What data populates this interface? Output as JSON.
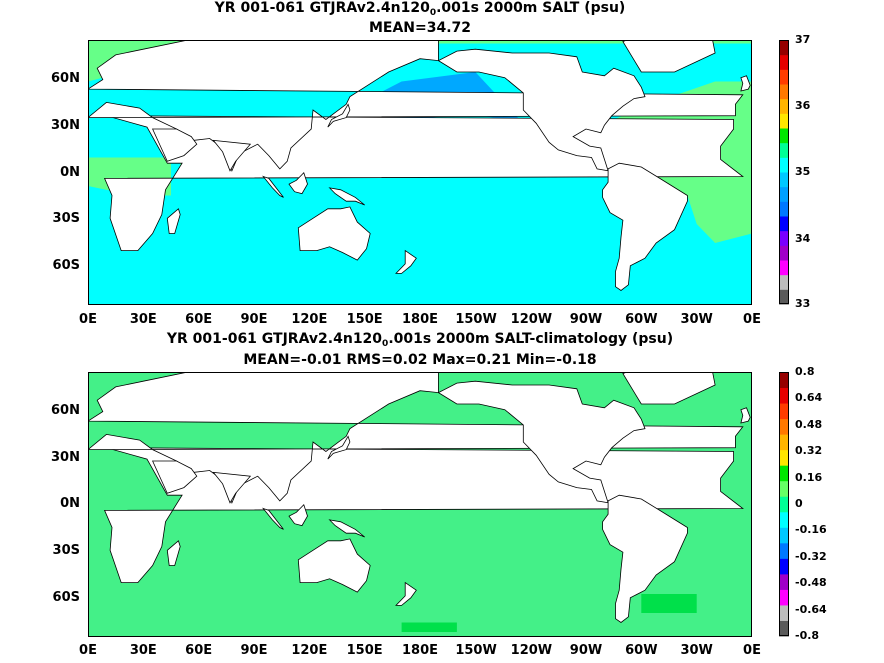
{
  "chart_data": [
    {
      "type": "heatmap",
      "title_parts": [
        "YR 001-061 GTJRAv2.4n120",
        "0",
        ".001s 2000m SALT (psu)"
      ],
      "subtitle": "MEAN=34.72",
      "x_ticks": [
        "0E",
        "30E",
        "60E",
        "90E",
        "120E",
        "150E",
        "180E",
        "150W",
        "120W",
        "90W",
        "60W",
        "30W",
        "0E"
      ],
      "y_ticks": [
        "60N",
        "30N",
        "0N",
        "30S",
        "60S"
      ],
      "colorbar": {
        "ticks": [
          "37",
          "36",
          "35",
          "34",
          "33"
        ],
        "range": [
          33,
          37
        ],
        "colors": [
          "#5a5a5a",
          "#bdbdbd",
          "#ff00ff",
          "#a000c8",
          "#7a00ff",
          "#0000ff",
          "#0078ff",
          "#00a0ff",
          "#00c8ff",
          "#00ffff",
          "#00ff96",
          "#00e600",
          "#ffe600",
          "#ffb400",
          "#ff7800",
          "#ff3c00",
          "#e60000",
          "#960000"
        ]
      },
      "fields": {
        "ocean_base": "#00ffff",
        "north_pacific": "#00a8ff",
        "atlantic": "#66ff88",
        "arctic": "#66ff88",
        "southern": "#00ffff",
        "mediterranean": "#e60000"
      }
    },
    {
      "type": "heatmap",
      "title_parts": [
        "YR 001-061 GTJRAv2.4n120",
        "0",
        ".001s 2000m SALT-climatology (psu)"
      ],
      "subtitle": "MEAN=-0.01   RMS=0.02   Max=0.21   Min=-0.18",
      "x_ticks": [
        "0E",
        "30E",
        "60E",
        "90E",
        "120E",
        "150E",
        "180E",
        "150W",
        "120W",
        "90W",
        "60W",
        "30W",
        "0E"
      ],
      "y_ticks": [
        "60N",
        "30N",
        "0N",
        "30S",
        "60S"
      ],
      "colorbar": {
        "ticks": [
          "0.8",
          "0.64",
          "0.48",
          "0.32",
          "0.16",
          "0",
          "-0.16",
          "-0.32",
          "-0.48",
          "-0.64",
          "-0.8"
        ],
        "range": [
          -0.8,
          0.8
        ],
        "colors": [
          "#5a5a5a",
          "#bdbdbd",
          "#ff00ff",
          "#a000c8",
          "#0000ff",
          "#0078ff",
          "#00c8ff",
          "#00ffff",
          "#00ff96",
          "#66ff66",
          "#00e600",
          "#ffe600",
          "#ffb400",
          "#ff7800",
          "#ff3c00",
          "#e60000",
          "#960000"
        ]
      },
      "fields": {
        "ocean_base": "#44f088",
        "north_pacific": "#44f088",
        "atlantic": "#44f088",
        "arctic": "#44f088",
        "southern": "#44f088",
        "mediterranean": "#44f088"
      }
    }
  ]
}
